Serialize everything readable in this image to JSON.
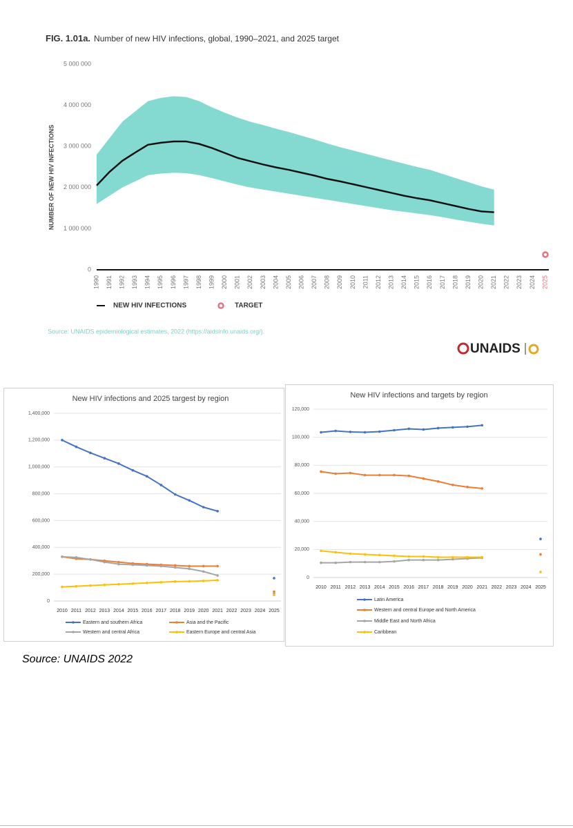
{
  "charts_source": "Source: UNAIDS 2022",
  "logo": "UNAIDS",
  "source": "Source: UNAIDS epidemiological estimates, 2022 (https://aidsinfo.unaids.org/).",
  "chart_data": [
    {
      "type": "line",
      "figure_label": "FIG. 1.01a.",
      "title": "Number of new HIV infections, global, 1990–2021, and 2025 target",
      "y_label": "NUMBER OF NEW HIV INFECTIONS",
      "categories": [
        "1990",
        "1991",
        "1992",
        "1993",
        "1994",
        "1995",
        "1996",
        "1997",
        "1998",
        "1999",
        "2000",
        "2001",
        "2002",
        "2003",
        "2004",
        "2005",
        "2006",
        "2007",
        "2008",
        "2009",
        "2010",
        "2011",
        "2012",
        "2013",
        "2014",
        "2015",
        "2016",
        "2017",
        "2018",
        "2019",
        "2020",
        "2021",
        "2022",
        "2023",
        "2024",
        "2025"
      ],
      "ylim": [
        0,
        5000000
      ],
      "yticks": [
        0,
        {
          "value": 1000000,
          "label": "1 000 000"
        },
        {
          "value": 2000000,
          "label": "2 000 000"
        },
        {
          "value": 3000000,
          "label": "3 000 000"
        },
        {
          "value": 4000000,
          "label": "4 000 000"
        },
        {
          "value": 5000000,
          "label": "5 000 000"
        }
      ],
      "band": {
        "color": "#6fd3c9",
        "upper": [
          2800000,
          3200000,
          3600000,
          3850000,
          4100000,
          4180000,
          4220000,
          4200000,
          4100000,
          3950000,
          3820000,
          3700000,
          3600000,
          3520000,
          3430000,
          3350000,
          3260000,
          3170000,
          3070000,
          2980000,
          2900000,
          2820000,
          2740000,
          2660000,
          2580000,
          2500000,
          2430000,
          2330000,
          2230000,
          2130000,
          2030000,
          1950000,
          null,
          null,
          null,
          null
        ],
        "lower": [
          1600000,
          1800000,
          2000000,
          2150000,
          2300000,
          2340000,
          2360000,
          2350000,
          2300000,
          2230000,
          2150000,
          2070000,
          2000000,
          1950000,
          1900000,
          1850000,
          1800000,
          1750000,
          1700000,
          1650000,
          1600000,
          1550000,
          1500000,
          1450000,
          1410000,
          1370000,
          1330000,
          1280000,
          1220000,
          1170000,
          1120000,
          1080000,
          null,
          null,
          null,
          null
        ]
      },
      "series": [
        {
          "name": "NEW HIV INFECTIONS",
          "color": "#111111",
          "values": [
            2050000,
            2380000,
            2650000,
            2850000,
            3040000,
            3090000,
            3120000,
            3120000,
            3060000,
            2960000,
            2840000,
            2720000,
            2640000,
            2560000,
            2490000,
            2430000,
            2360000,
            2290000,
            2210000,
            2150000,
            2080000,
            2010000,
            1940000,
            1870000,
            1800000,
            1740000,
            1690000,
            1620000,
            1550000,
            1480000,
            1420000,
            1400000,
            null,
            null,
            null,
            null
          ]
        },
        {
          "name": "TARGET",
          "color": "#e8707c",
          "values": [
            null,
            null,
            null,
            null,
            null,
            null,
            null,
            null,
            null,
            null,
            null,
            null,
            null,
            null,
            null,
            null,
            null,
            null,
            null,
            null,
            null,
            null,
            null,
            null,
            null,
            null,
            null,
            null,
            null,
            null,
            null,
            null,
            null,
            null,
            null,
            370000
          ]
        }
      ]
    },
    {
      "type": "line",
      "title": "New HIV infections and 2025 targest by region",
      "categories": [
        "2010",
        "2011",
        "2012",
        "2013",
        "2014",
        "2015",
        "2016",
        "2017",
        "2018",
        "2019",
        "2020",
        "2021",
        "2022",
        "2023",
        "2024",
        "2025"
      ],
      "ylim": [
        0,
        1400000
      ],
      "yticks": [
        0,
        {
          "value": 200000,
          "label": "200,000"
        },
        {
          "value": 400000,
          "label": "400,000"
        },
        {
          "value": 600000,
          "label": "600,000"
        },
        {
          "value": 800000,
          "label": "800,000"
        },
        {
          "value": 1000000,
          "label": "1,000,000"
        },
        {
          "value": 1200000,
          "label": "1,200,000"
        },
        {
          "value": 1400000,
          "label": "1,400,000"
        }
      ],
      "grid": true,
      "series": [
        {
          "name": "Eastern and southern Africa",
          "color": "#4472c4",
          "values": [
            1200000,
            1150000,
            1105000,
            1065000,
            1025000,
            975000,
            930000,
            865000,
            795000,
            750000,
            700000,
            670000,
            null,
            null,
            null,
            170000
          ]
        },
        {
          "name": "Asia and the Pacific",
          "color": "#ed7d31",
          "values": [
            330000,
            315000,
            310000,
            300000,
            290000,
            280000,
            275000,
            270000,
            265000,
            260000,
            260000,
            260000,
            null,
            null,
            null,
            70000
          ]
        },
        {
          "name": "Western and central Africa",
          "color": "#a5a5a5",
          "values": [
            330000,
            325000,
            310000,
            290000,
            275000,
            270000,
            265000,
            260000,
            250000,
            240000,
            220000,
            190000,
            null,
            null,
            null,
            55000
          ]
        },
        {
          "name": "Eastern Europe and central Asia",
          "color": "#ffc000",
          "values": [
            105000,
            110000,
            115000,
            120000,
            125000,
            130000,
            135000,
            140000,
            145000,
            147000,
            150000,
            155000,
            null,
            null,
            null,
            45000
          ]
        }
      ]
    },
    {
      "type": "line",
      "title": "New HIV infections and targets by region",
      "categories": [
        "2010",
        "2011",
        "2012",
        "2013",
        "2014",
        "2015",
        "2016",
        "2017",
        "2018",
        "2019",
        "2020",
        "2021",
        "2022",
        "2023",
        "2024",
        "2025"
      ],
      "ylim": [
        0,
        120000
      ],
      "yticks": [
        0,
        {
          "value": 20000,
          "label": "20,000"
        },
        {
          "value": 40000,
          "label": "40,000"
        },
        {
          "value": 60000,
          "label": "60,000"
        },
        {
          "value": 80000,
          "label": "80,000"
        },
        {
          "value": 100000,
          "label": "100,000"
        },
        {
          "value": 120000,
          "label": "120,000"
        }
      ],
      "grid": true,
      "series": [
        {
          "name": "Latin America",
          "color": "#4472c4",
          "values": [
            103500,
            104500,
            103800,
            103500,
            104000,
            105000,
            106000,
            105500,
            106500,
            107000,
            107500,
            108500,
            null,
            null,
            null,
            27500
          ]
        },
        {
          "name": "Western and central Europe and North America",
          "color": "#ed7d31",
          "values": [
            75500,
            74000,
            74500,
            73000,
            73000,
            73000,
            72500,
            70500,
            68500,
            66000,
            64500,
            63500,
            null,
            null,
            null,
            16500
          ]
        },
        {
          "name": "Middle East and North Africa",
          "color": "#a5a5a5",
          "values": [
            10500,
            10500,
            11000,
            11000,
            11000,
            11500,
            12500,
            12500,
            12500,
            13000,
            13500,
            14000,
            null,
            null,
            null,
            null
          ]
        },
        {
          "name": "Caribbean",
          "color": "#ffc000",
          "values": [
            19000,
            18000,
            17000,
            16500,
            16000,
            15500,
            15000,
            15000,
            14500,
            14500,
            14500,
            14500,
            null,
            null,
            null,
            4000
          ]
        }
      ]
    }
  ]
}
